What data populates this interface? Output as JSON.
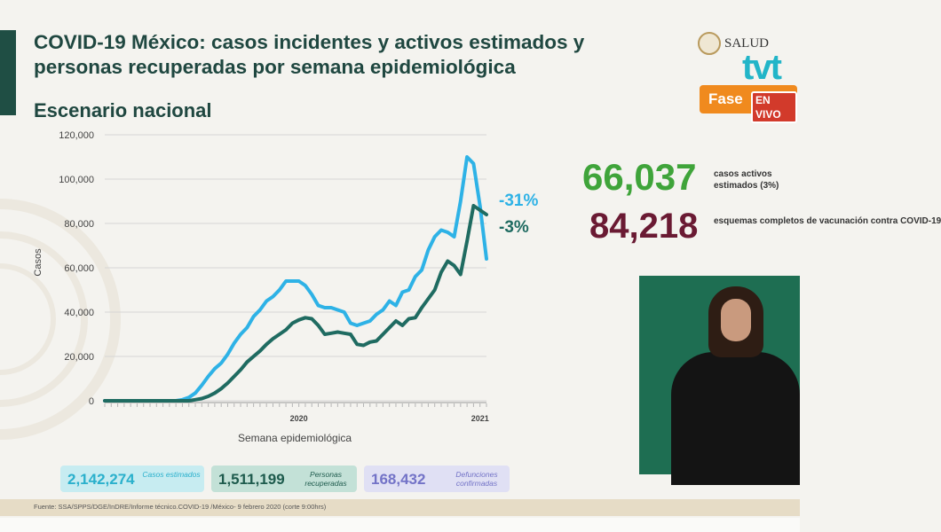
{
  "header": {
    "title": "COVID-19 México: casos incidentes y activos estimados y personas recuperadas por semana epidemiológica",
    "subtitle": "Escenario nacional"
  },
  "branding": {
    "logo_text": "SALUD",
    "tv_logo": "tvt",
    "phase_label": "Fase",
    "live_badge": "EN VIVO"
  },
  "stats": {
    "active_cases": "66,037",
    "active_cases_label": "casos activos estimados (3%)",
    "vaccination": "84,218",
    "vaccination_label": "esquemas completos de vacunación contra COVID-19"
  },
  "summary_cards": [
    {
      "value": "2,142,274",
      "label": "Casos estimados"
    },
    {
      "value": "1,511,199",
      "label": "Personas recuperadas"
    },
    {
      "value": "168,432",
      "label": "Defunciones confirmadas"
    }
  ],
  "source_note": "Fuente: SSA/SPPS/DGE/InDRE/Informe técnico.COVID-19 /México- 9 febrero 2020 (corte 9:00hrs)",
  "colors": {
    "estimated": "#2eb2e6",
    "active": "#1f6b61",
    "title": "#1f4740",
    "stat_green": "#3fa43a",
    "stat_maroon": "#6a1a33"
  },
  "chart_data": {
    "type": "line",
    "xlabel": "Semana epidemiológica",
    "ylabel": "Casos",
    "ylim": [
      0,
      120000
    ],
    "yticks": [
      "0",
      "20,000",
      "40,000",
      "60,000",
      "80,000",
      "100,000",
      "120,000"
    ],
    "year_labels": [
      {
        "label": "2020",
        "week": 30
      },
      {
        "label": "2021",
        "week": 58
      }
    ],
    "grid": true,
    "series": [
      {
        "name": "Casos estimados",
        "color": "#2eb2e6",
        "end_label": "-31%",
        "values": [
          0,
          0,
          0,
          0,
          0,
          0,
          0,
          0,
          0,
          0,
          0,
          0,
          500,
          1500,
          3500,
          7000,
          11000,
          14500,
          17000,
          21000,
          26000,
          30000,
          33000,
          38000,
          41000,
          45000,
          47000,
          50000,
          54000,
          54000,
          54000,
          52000,
          48000,
          43000,
          42000,
          42000,
          41000,
          40000,
          35000,
          34000,
          35000,
          36000,
          39000,
          41000,
          45000,
          43000,
          49000,
          50000,
          56000,
          59000,
          68000,
          74000,
          77000,
          76000,
          74000,
          90000,
          110000,
          107000,
          88000,
          64000
        ]
      },
      {
        "name": "Casos activos",
        "color": "#1f6b61",
        "end_label": "-3%",
        "values": [
          0,
          0,
          0,
          0,
          0,
          0,
          0,
          0,
          0,
          0,
          0,
          0,
          0,
          0,
          500,
          1000,
          2000,
          3500,
          5500,
          8000,
          11000,
          14000,
          17500,
          20000,
          22500,
          25500,
          28000,
          30000,
          32000,
          35000,
          36500,
          37500,
          37000,
          34000,
          30000,
          30500,
          31000,
          30500,
          30000,
          25500,
          25000,
          26500,
          27000,
          30000,
          33000,
          36000,
          34000,
          37000,
          37500,
          42000,
          46000,
          50000,
          58000,
          63000,
          61000,
          57000,
          72000,
          88000,
          86000,
          84000
        ]
      }
    ]
  }
}
